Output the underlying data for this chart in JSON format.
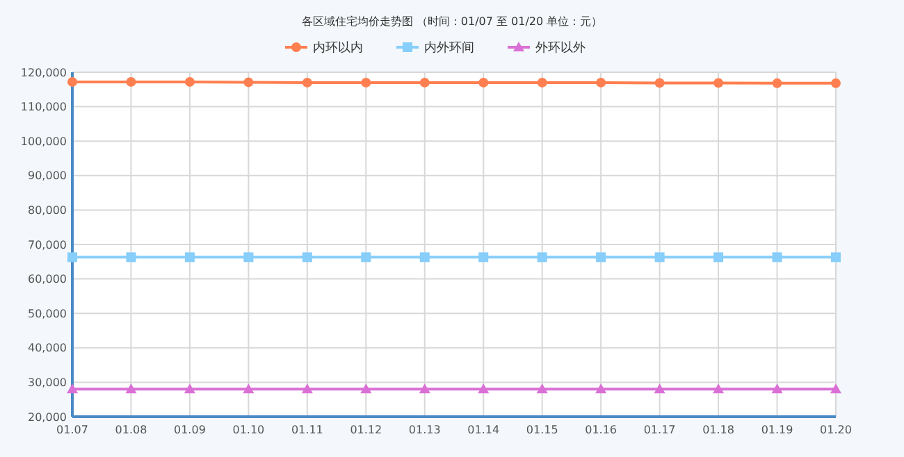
{
  "chart_data": {
    "type": "line",
    "title": "各区域住宅均价走势图 （时间：01/07 至 01/20 单位：元）",
    "categories": [
      "01.07",
      "01.08",
      "01.09",
      "01.10",
      "01.11",
      "01.12",
      "01.13",
      "01.14",
      "01.15",
      "01.16",
      "01.17",
      "01.18",
      "01.19",
      "01.20"
    ],
    "series": [
      {
        "name": "内环以内",
        "color": "#ff7f50",
        "marker": "circle",
        "values": [
          117200,
          117200,
          117200,
          117100,
          117000,
          117000,
          117000,
          117000,
          117000,
          117000,
          116900,
          116900,
          116800,
          116800
        ]
      },
      {
        "name": "内外环间",
        "color": "#87cefa",
        "marker": "square",
        "values": [
          66300,
          66300,
          66300,
          66300,
          66300,
          66300,
          66300,
          66300,
          66300,
          66300,
          66300,
          66300,
          66300,
          66300
        ]
      },
      {
        "name": "外环以外",
        "color": "#da70d6",
        "marker": "triangle",
        "values": [
          28000,
          28000,
          28000,
          28000,
          28000,
          28000,
          28000,
          28000,
          28000,
          28000,
          28000,
          28000,
          28000,
          28000
        ]
      }
    ],
    "ylim": [
      20000,
      120000
    ],
    "yticks": [
      {
        "value": 20000,
        "label": "20,000"
      },
      {
        "value": 30000,
        "label": "30,000"
      },
      {
        "value": 40000,
        "label": "40,000"
      },
      {
        "value": 50000,
        "label": "50,000"
      },
      {
        "value": 60000,
        "label": "60,000"
      },
      {
        "value": 70000,
        "label": "70,000"
      },
      {
        "value": 80000,
        "label": "80,000"
      },
      {
        "value": 90000,
        "label": "90,000"
      },
      {
        "value": 100000,
        "label": "100,000"
      },
      {
        "value": 110000,
        "label": "110,000"
      },
      {
        "value": 120000,
        "label": "120,000"
      }
    ],
    "grid": true,
    "legend": "top",
    "line_style": "solid"
  }
}
